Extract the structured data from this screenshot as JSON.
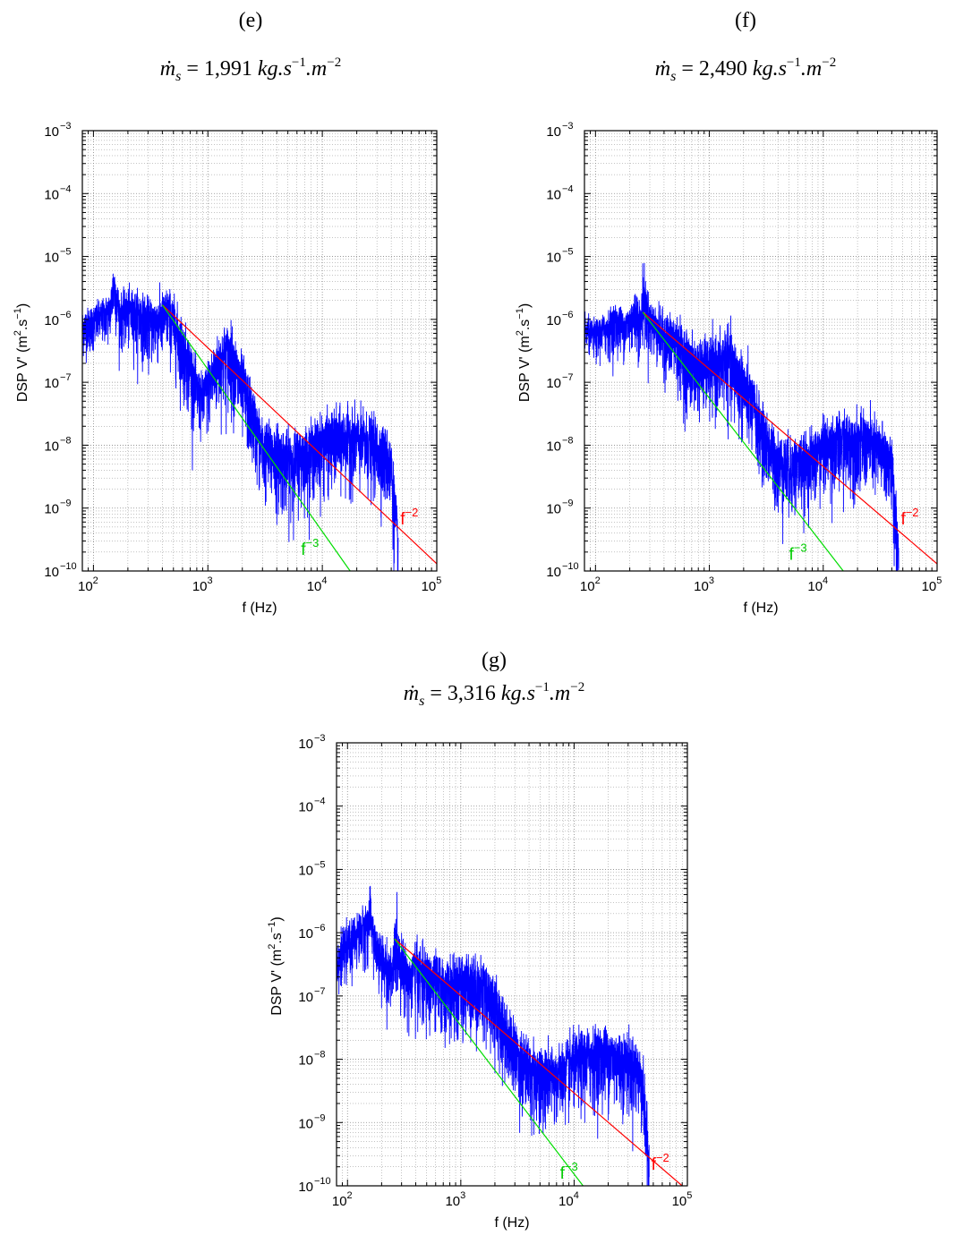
{
  "chart_data": [
    {
      "type": "line",
      "panel_label": "(e)",
      "title": {
        "var": "ṁ",
        "sub": "s",
        "eq": " = ",
        "value": "1,991",
        "unit_base": " kg.s",
        "unit_exp1": "−1",
        "unit_mid": ".m",
        "unit_exp2": "−2"
      },
      "xlabel": "f (Hz)",
      "ylabel": {
        "pre": "DSP V' (m",
        "e1": "2",
        "mid": ".s",
        "e2": "−1",
        "post": ")"
      },
      "xscale": "log",
      "yscale": "log",
      "xlim": [
        80,
        100000
      ],
      "ylim": [
        1e-10,
        0.001
      ],
      "x_ticks": [
        {
          "base": "10",
          "exp": "2",
          "value": 100
        },
        {
          "base": "10",
          "exp": "3",
          "value": 1000
        },
        {
          "base": "10",
          "exp": "4",
          "value": 10000
        },
        {
          "base": "10",
          "exp": "5",
          "value": 100000
        }
      ],
      "y_ticks": [
        {
          "base": "10",
          "exp": "−10",
          "value": 1e-10
        },
        {
          "base": "10",
          "exp": "−9",
          "value": 1e-09
        },
        {
          "base": "10",
          "exp": "−8",
          "value": 1e-08
        },
        {
          "base": "10",
          "exp": "−7",
          "value": 1e-07
        },
        {
          "base": "10",
          "exp": "−6",
          "value": 1e-06
        },
        {
          "base": "10",
          "exp": "−5",
          "value": 1e-05
        },
        {
          "base": "10",
          "exp": "−4",
          "value": 0.0001
        },
        {
          "base": "10",
          "exp": "−3",
          "value": 0.001
        }
      ],
      "grid": true,
      "series": [
        {
          "kind": "spectrum",
          "color": "#0000ff",
          "x": [
            80,
            100,
            120,
            140,
            150,
            170,
            200,
            250,
            300,
            350,
            400,
            450,
            500,
            600,
            700,
            800,
            900,
            1000,
            1200,
            1400,
            1600,
            1800,
            2000,
            2500,
            3000,
            4000,
            5000,
            7000,
            10000,
            15000,
            20000,
            25000,
            30000,
            35000,
            40000,
            43000,
            46000
          ],
          "y": [
            8e-07,
            1e-06,
            1.2e-06,
            1.5e-06,
            4e-06,
            1.3e-06,
            1.5e-06,
            1.3e-06,
            1e-06,
            1e-06,
            1.2e-06,
            1.5e-06,
            1e-06,
            4e-07,
            2e-07,
            8e-08,
            6e-08,
            1e-07,
            2e-07,
            3e-07,
            3e-07,
            1.5e-07,
            1e-07,
            3e-08,
            1e-08,
            8e-09,
            6e-09,
            8e-09,
            1.2e-08,
            1.5e-08,
            1.4e-08,
            1.2e-08,
            1e-08,
            8e-09,
            5e-09,
            1e-09,
            2e-10
          ],
          "spread": [
            0.35,
            0.35,
            0.35,
            0.35,
            0.5,
            0.4,
            0.45,
            0.5,
            0.5,
            0.5,
            0.5,
            0.5,
            0.55,
            0.6,
            0.6,
            0.5,
            0.5,
            0.55,
            0.6,
            0.65,
            0.65,
            0.65,
            0.65,
            0.6,
            0.6,
            0.65,
            0.65,
            0.55,
            0.6,
            0.6,
            0.6,
            0.6,
            0.6,
            0.6,
            0.6,
            0.7,
            0.7
          ]
        },
        {
          "kind": "fit",
          "color": "#ff0000",
          "x": [
            400,
            100000
          ],
          "y": [
            1.7e-06,
            1.3e-10
          ]
        },
        {
          "kind": "fit",
          "color": "#00dd00",
          "x": [
            400,
            17500
          ],
          "y": [
            1.7e-06,
            1e-10
          ]
        }
      ],
      "annotations": [
        {
          "base": "f",
          "exp": "−2",
          "color": "#ff0000",
          "x": 48000,
          "y": 5.5e-10
        },
        {
          "base": "f",
          "exp": "−3",
          "color": "#00cc00",
          "x": 6500,
          "y": 1.8e-10
        }
      ]
    },
    {
      "type": "line",
      "panel_label": "(f)",
      "title": {
        "var": "ṁ",
        "sub": "s",
        "eq": " = ",
        "value": "2,490",
        "unit_base": " kg.s",
        "unit_exp1": "−1",
        "unit_mid": ".m",
        "unit_exp2": "−2"
      },
      "xlabel": "f (Hz)",
      "ylabel": {
        "pre": "DSP V' (m",
        "e1": "2",
        "mid": ".s",
        "e2": "−1",
        "post": ")"
      },
      "xscale": "log",
      "yscale": "log",
      "xlim": [
        80,
        100000
      ],
      "ylim": [
        1e-10,
        0.001
      ],
      "x_ticks": [
        {
          "base": "10",
          "exp": "2",
          "value": 100
        },
        {
          "base": "10",
          "exp": "3",
          "value": 1000
        },
        {
          "base": "10",
          "exp": "4",
          "value": 10000
        },
        {
          "base": "10",
          "exp": "5",
          "value": 100000
        }
      ],
      "y_ticks": [
        {
          "base": "10",
          "exp": "−10",
          "value": 1e-10
        },
        {
          "base": "10",
          "exp": "−9",
          "value": 1e-09
        },
        {
          "base": "10",
          "exp": "−8",
          "value": 1e-08
        },
        {
          "base": "10",
          "exp": "−7",
          "value": 1e-07
        },
        {
          "base": "10",
          "exp": "−6",
          "value": 1e-06
        },
        {
          "base": "10",
          "exp": "−5",
          "value": 1e-05
        },
        {
          "base": "10",
          "exp": "−4",
          "value": 0.0001
        },
        {
          "base": "10",
          "exp": "−3",
          "value": 0.001
        }
      ],
      "grid": true,
      "series": [
        {
          "kind": "spectrum",
          "color": "#0000ff",
          "x": [
            80,
            100,
            130,
            150,
            180,
            200,
            230,
            250,
            260,
            300,
            350,
            400,
            500,
            600,
            700,
            800,
            1000,
            1200,
            1400,
            1600,
            2000,
            2500,
            3000,
            4000,
            5000,
            7000,
            10000,
            15000,
            20000,
            25000,
            30000,
            35000,
            40000,
            43000,
            46000
          ],
          "y": [
            7e-07,
            6e-07,
            8e-07,
            1e-06,
            8e-07,
            1e-06,
            1.5e-06,
            8e-07,
            3e-06,
            1e-06,
            8e-07,
            6e-07,
            5e-07,
            3e-07,
            2e-07,
            2e-07,
            2e-07,
            2e-07,
            3e-07,
            2e-07,
            1e-07,
            4e-08,
            1.5e-08,
            6e-09,
            5e-09,
            6e-09,
            1e-08,
            1.3e-08,
            1.3e-08,
            1.2e-08,
            1e-08,
            8e-09,
            5e-09,
            1e-09,
            2e-10
          ],
          "spread": [
            0.3,
            0.3,
            0.35,
            0.4,
            0.35,
            0.4,
            0.5,
            0.45,
            0.6,
            0.45,
            0.45,
            0.5,
            0.55,
            0.6,
            0.6,
            0.55,
            0.6,
            0.6,
            0.65,
            0.65,
            0.65,
            0.6,
            0.6,
            0.6,
            0.65,
            0.55,
            0.6,
            0.6,
            0.6,
            0.6,
            0.6,
            0.6,
            0.6,
            0.7,
            0.7
          ]
        },
        {
          "kind": "fit",
          "color": "#ff0000",
          "x": [
            260,
            100000
          ],
          "y": [
            1.3e-06,
            1.3e-10
          ]
        },
        {
          "kind": "fit",
          "color": "#00dd00",
          "x": [
            260,
            15000
          ],
          "y": [
            1.3e-06,
            1e-10
          ]
        }
      ],
      "annotations": [
        {
          "base": "f",
          "exp": "−2",
          "color": "#ff0000",
          "x": 48000,
          "y": 5.5e-10
        },
        {
          "base": "f",
          "exp": "−3",
          "color": "#00cc00",
          "x": 5000,
          "y": 1.5e-10
        }
      ]
    },
    {
      "type": "line",
      "panel_label": "(g)",
      "title": {
        "var": "ṁ",
        "sub": "s",
        "eq": " = ",
        "value": "3,316",
        "unit_base": " kg.s",
        "unit_exp1": "−1",
        "unit_mid": ".m",
        "unit_exp2": "−2"
      },
      "xlabel": "f (Hz)",
      "ylabel": {
        "pre": "DSP V' (m",
        "e1": "2",
        "mid": ".s",
        "e2": "−1",
        "post": ")"
      },
      "xscale": "log",
      "yscale": "log",
      "xlim": [
        80,
        100000
      ],
      "ylim": [
        1e-10,
        0.001
      ],
      "x_ticks": [
        {
          "base": "10",
          "exp": "2",
          "value": 100
        },
        {
          "base": "10",
          "exp": "3",
          "value": 1000
        },
        {
          "base": "10",
          "exp": "4",
          "value": 10000
        },
        {
          "base": "10",
          "exp": "5",
          "value": 100000
        }
      ],
      "y_ticks": [
        {
          "base": "10",
          "exp": "−10",
          "value": 1e-10
        },
        {
          "base": "10",
          "exp": "−9",
          "value": 1e-09
        },
        {
          "base": "10",
          "exp": "−8",
          "value": 1e-08
        },
        {
          "base": "10",
          "exp": "−7",
          "value": 1e-07
        },
        {
          "base": "10",
          "exp": "−6",
          "value": 1e-06
        },
        {
          "base": "10",
          "exp": "−5",
          "value": 1e-05
        },
        {
          "base": "10",
          "exp": "−4",
          "value": 0.0001
        },
        {
          "base": "10",
          "exp": "−3",
          "value": 0.001
        }
      ],
      "grid": true,
      "series": [
        {
          "kind": "spectrum",
          "color": "#0000ff",
          "x": [
            80,
            100,
            120,
            140,
            160,
            180,
            200,
            230,
            250,
            260,
            300,
            350,
            400,
            500,
            600,
            700,
            800,
            1000,
            1200,
            1400,
            1600,
            2000,
            2500,
            3000,
            4000,
            5000,
            7000,
            10000,
            15000,
            20000,
            25000,
            30000,
            35000,
            40000,
            43000,
            46000
          ],
          "y": [
            4e-07,
            7e-07,
            1e-06,
            1.3e-06,
            2e-06,
            6e-07,
            4e-07,
            3e-07,
            2e-07,
            8e-07,
            4e-07,
            2e-07,
            3e-07,
            2e-07,
            2e-07,
            1.5e-07,
            1.5e-07,
            1.5e-07,
            2e-07,
            1.5e-07,
            1.5e-07,
            8e-08,
            3e-08,
            1.5e-08,
            8e-09,
            6e-09,
            6e-09,
            1e-08,
            1.3e-08,
            1.3e-08,
            1.1e-08,
            1e-08,
            8e-09,
            5e-09,
            1e-09,
            2e-10
          ],
          "spread": [
            0.4,
            0.4,
            0.4,
            0.45,
            0.5,
            0.45,
            0.5,
            0.5,
            0.5,
            0.65,
            0.5,
            0.5,
            0.6,
            0.6,
            0.6,
            0.6,
            0.6,
            0.6,
            0.65,
            0.6,
            0.6,
            0.6,
            0.6,
            0.6,
            0.65,
            0.65,
            0.55,
            0.6,
            0.6,
            0.6,
            0.6,
            0.6,
            0.6,
            0.6,
            0.7,
            0.7
          ]
        },
        {
          "kind": "fit",
          "color": "#ff0000",
          "x": [
            260,
            90000
          ],
          "y": [
            8e-07,
            1e-10
          ]
        },
        {
          "kind": "fit",
          "color": "#00dd00",
          "x": [
            260,
            12000
          ],
          "y": [
            8e-07,
            1e-10
          ]
        }
      ],
      "annotations": [
        {
          "base": "f",
          "exp": "−2",
          "color": "#ff0000",
          "x": 48000,
          "y": 1.8e-10
        },
        {
          "base": "f",
          "exp": "−3",
          "color": "#00cc00",
          "x": 7500,
          "y": 1.3e-10
        }
      ]
    }
  ]
}
